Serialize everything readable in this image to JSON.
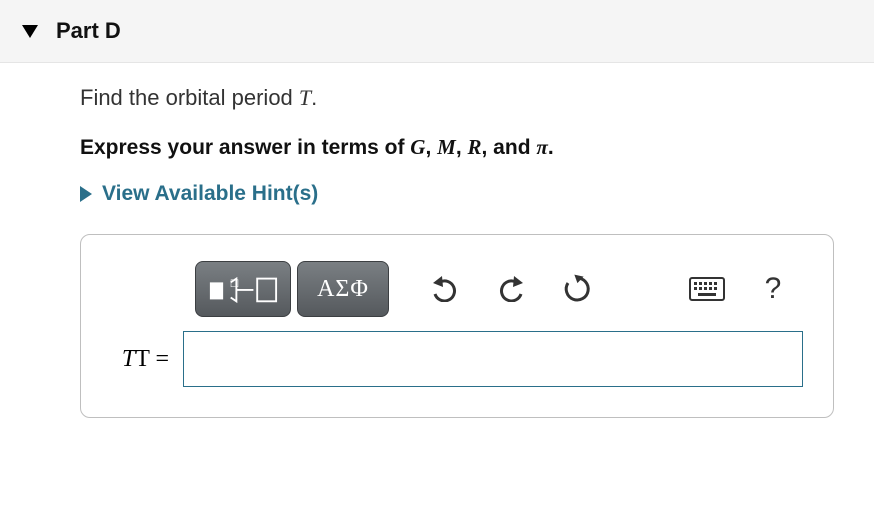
{
  "part": {
    "label": "Part D"
  },
  "question": {
    "prefix": "Find the orbital period ",
    "var": "T",
    "suffix": "."
  },
  "instruction": {
    "prefix": "Express your answer in terms of ",
    "v1": "G",
    "v2": "M",
    "v3": "R",
    "v4": "π",
    "sep": ", ",
    "and": ", and ",
    "suffix": "."
  },
  "hints": {
    "label": "View Available Hint(s)"
  },
  "toolbar": {
    "greek_label": "ΑΣΦ",
    "templates_name": "math-templates-button",
    "greek_name": "greek-letters-button",
    "undo_name": "undo-button",
    "redo_name": "redo-button",
    "reset_name": "reset-button",
    "keyboard_name": "keyboard-button",
    "help_name": "help-button"
  },
  "answer": {
    "lhs_var": "T",
    "lhs_suffix": "T = ",
    "value": "",
    "placeholder": ""
  },
  "colors": {
    "accent": "#2a6f8a",
    "header_bg": "#f5f5f5",
    "border": "#bfbfbf"
  }
}
